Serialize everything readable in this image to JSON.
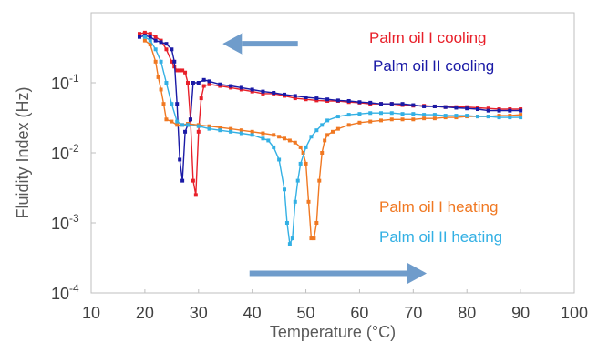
{
  "chart_data": {
    "type": "scatter",
    "title": "",
    "xlabel": "Temperature (°C)",
    "ylabel": "Fluidity Index (Hz)",
    "xlim": [
      10,
      100
    ],
    "ylim": [
      0.0001,
      1
    ],
    "yscale": "log",
    "grid": false,
    "x_ticks": [
      "10",
      "20",
      "30",
      "40",
      "50",
      "60",
      "70",
      "80",
      "90",
      "100"
    ],
    "y_ticks": [
      {
        "value": 0.1,
        "base": "10",
        "exp": "-1"
      },
      {
        "value": 0.01,
        "base": "10",
        "exp": "-2"
      },
      {
        "value": 0.001,
        "base": "10",
        "exp": "-3"
      },
      {
        "value": 0.0001,
        "base": "10",
        "exp": "-4"
      }
    ],
    "annotations": {
      "cooling_arrow": {
        "direction": "left",
        "color": "#6f9ccb",
        "from_x": 48.5,
        "to_x": 34.5,
        "y": 0.36
      },
      "heating_arrow": {
        "direction": "right",
        "color": "#6f9ccb",
        "from_x": 39.5,
        "to_x": 72.5,
        "y": 0.00019
      }
    },
    "series": [
      {
        "name": "Palm oil I cooling",
        "color": "#e8202a",
        "x": [
          19,
          20,
          21,
          22,
          23,
          24,
          25,
          25.5,
          26,
          26.5,
          27,
          27.5,
          28,
          28.5,
          29,
          29.5,
          30,
          30.5,
          31,
          32,
          34,
          36,
          38,
          40,
          42,
          44,
          46,
          48,
          50,
          52,
          54,
          56,
          58,
          60,
          62,
          64,
          66,
          68,
          70,
          72,
          74,
          76,
          78,
          80,
          82,
          84,
          86,
          88,
          90
        ],
        "y": [
          0.5,
          0.52,
          0.5,
          0.45,
          0.4,
          0.3,
          0.2,
          0.17,
          0.15,
          0.15,
          0.15,
          0.14,
          0.1,
          0.03,
          0.004,
          0.0025,
          0.02,
          0.06,
          0.09,
          0.095,
          0.09,
          0.085,
          0.08,
          0.075,
          0.07,
          0.07,
          0.065,
          0.06,
          0.058,
          0.056,
          0.055,
          0.055,
          0.053,
          0.052,
          0.05,
          0.05,
          0.05,
          0.048,
          0.047,
          0.047,
          0.046,
          0.045,
          0.045,
          0.045,
          0.044,
          0.043,
          0.042,
          0.042,
          0.042
        ]
      },
      {
        "name": "Palm oil II cooling",
        "color": "#1a1aa6",
        "x": [
          19,
          20,
          21,
          22,
          23,
          24,
          25,
          25.5,
          26,
          26.5,
          27,
          27.5,
          28,
          28.5,
          29,
          30,
          31,
          32,
          34,
          36,
          38,
          40,
          42,
          44,
          46,
          48,
          50,
          52,
          54,
          56,
          58,
          60,
          62,
          64,
          66,
          68,
          70,
          72,
          74,
          76,
          78,
          80,
          82,
          84,
          86,
          88,
          90
        ],
        "y": [
          0.45,
          0.47,
          0.45,
          0.4,
          0.38,
          0.36,
          0.3,
          0.2,
          0.05,
          0.008,
          0.004,
          0.02,
          0.025,
          0.03,
          0.1,
          0.1,
          0.11,
          0.105,
          0.095,
          0.09,
          0.085,
          0.08,
          0.075,
          0.072,
          0.068,
          0.065,
          0.062,
          0.06,
          0.058,
          0.056,
          0.055,
          0.053,
          0.052,
          0.05,
          0.05,
          0.05,
          0.048,
          0.046,
          0.046,
          0.045,
          0.044,
          0.043,
          0.042,
          0.04,
          0.04,
          0.04,
          0.04
        ]
      },
      {
        "name": "Palm oil I heating",
        "color": "#f07822",
        "x": [
          20,
          21,
          22,
          22.5,
          23,
          23.5,
          24,
          25,
          26,
          27,
          28,
          30,
          32,
          34,
          36,
          38,
          40,
          42,
          44,
          45,
          46,
          47,
          48,
          49,
          49.5,
          50,
          50.5,
          51,
          51.5,
          52,
          52.5,
          53,
          53.5,
          54,
          55,
          56,
          58,
          60,
          62,
          64,
          66,
          68,
          70,
          72,
          74,
          76,
          78,
          80,
          82,
          84,
          86,
          88,
          90
        ],
        "y": [
          0.4,
          0.35,
          0.2,
          0.12,
          0.08,
          0.05,
          0.03,
          0.028,
          0.025,
          0.025,
          0.026,
          0.025,
          0.024,
          0.023,
          0.022,
          0.021,
          0.02,
          0.019,
          0.018,
          0.017,
          0.016,
          0.015,
          0.014,
          0.012,
          0.01,
          0.007,
          0.002,
          0.0006,
          0.0006,
          0.001,
          0.004,
          0.01,
          0.015,
          0.018,
          0.02,
          0.022,
          0.025,
          0.027,
          0.028,
          0.029,
          0.03,
          0.03,
          0.03,
          0.031,
          0.031,
          0.032,
          0.032,
          0.033,
          0.033,
          0.033,
          0.034,
          0.034,
          0.035
        ]
      },
      {
        "name": "Palm oil II heating",
        "color": "#33b0e4",
        "x": [
          20,
          21,
          22,
          23,
          24,
          25,
          26,
          27,
          28,
          30,
          32,
          34,
          36,
          38,
          40,
          42,
          43,
          44,
          45,
          46,
          46.5,
          47,
          47.5,
          48,
          48.5,
          49,
          50,
          51,
          52,
          53,
          54,
          56,
          58,
          60,
          62,
          64,
          66,
          68,
          70,
          72,
          74,
          76,
          78,
          80,
          82,
          84,
          86,
          88,
          90
        ],
        "y": [
          0.45,
          0.4,
          0.3,
          0.2,
          0.1,
          0.05,
          0.028,
          0.025,
          0.025,
          0.024,
          0.022,
          0.021,
          0.02,
          0.019,
          0.018,
          0.016,
          0.015,
          0.012,
          0.008,
          0.003,
          0.001,
          0.0005,
          0.0006,
          0.002,
          0.004,
          0.007,
          0.012,
          0.017,
          0.021,
          0.025,
          0.029,
          0.033,
          0.035,
          0.036,
          0.037,
          0.037,
          0.037,
          0.036,
          0.036,
          0.035,
          0.035,
          0.034,
          0.034,
          0.034,
          0.033,
          0.033,
          0.032,
          0.032,
          0.032
        ]
      }
    ]
  }
}
